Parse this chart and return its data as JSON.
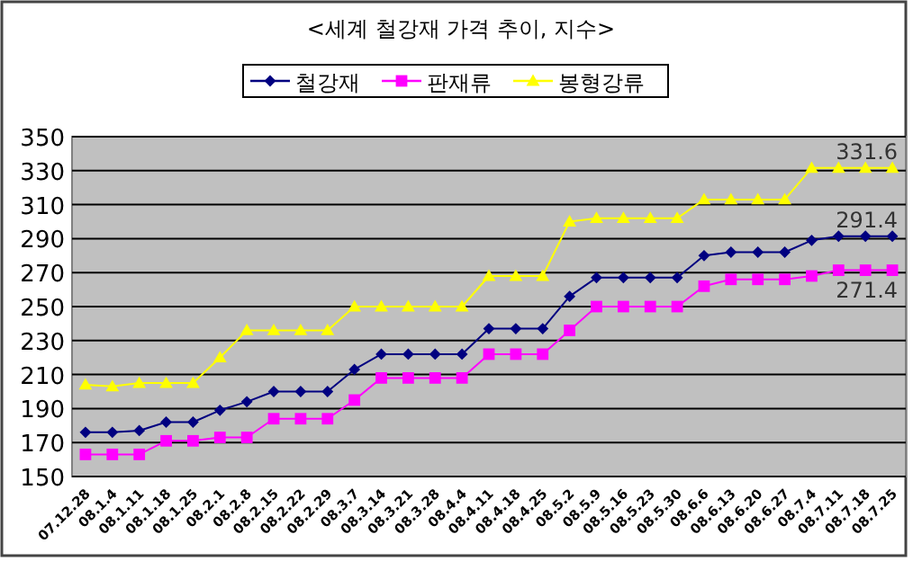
{
  "chart_data": {
    "type": "line",
    "title": "<세계 철강재 가격 추이, 지수>",
    "categories": [
      "07.12.28",
      "08.1.4",
      "08.1.11",
      "08.1.18",
      "08.1.25",
      "08.2.1",
      "08.2.8",
      "08.2.15",
      "08.2.22",
      "08.2.29",
      "08.3.7",
      "08.3.14",
      "08.3.21",
      "08.3.28",
      "08.4.4",
      "08.4.11",
      "08.4.18",
      "08.4.25",
      "08.5.2",
      "08.5.9",
      "08.5.16",
      "08.5.23",
      "08.5.30",
      "08.6.6",
      "08.6.13",
      "08.6.20",
      "08.6.27",
      "08.7.4",
      "08.7.11",
      "08.7.18",
      "08.7.25"
    ],
    "series": [
      {
        "name": "철강재",
        "color": "#000080",
        "marker": "diamond",
        "values": [
          176,
          176,
          177,
          182,
          182,
          189,
          194,
          200,
          200,
          200,
          213,
          222,
          222,
          222,
          222,
          237,
          237,
          237,
          256,
          267,
          267,
          267,
          267,
          280,
          282,
          282,
          282,
          289,
          291.4,
          291.4,
          291.4
        ],
        "value_labels": [
          null,
          null,
          null,
          null,
          null,
          null,
          null,
          null,
          null,
          null,
          null,
          null,
          null,
          null,
          null,
          null,
          null,
          null,
          null,
          null,
          null,
          null,
          null,
          null,
          null,
          null,
          null,
          null,
          null,
          null,
          "291.4"
        ]
      },
      {
        "name": "판재류",
        "color": "#ff00ff",
        "marker": "square",
        "values": [
          163,
          163,
          163,
          171,
          171,
          173,
          173,
          184,
          184,
          184,
          195,
          208,
          208,
          208,
          208,
          222,
          222,
          222,
          236,
          250,
          250,
          250,
          250,
          262,
          266,
          266,
          266,
          268,
          271.4,
          271.4,
          271.4
        ],
        "value_labels": [
          null,
          null,
          null,
          null,
          null,
          null,
          null,
          null,
          null,
          null,
          null,
          null,
          null,
          null,
          null,
          null,
          null,
          null,
          null,
          null,
          null,
          null,
          null,
          null,
          null,
          null,
          null,
          null,
          null,
          null,
          "271.4"
        ]
      },
      {
        "name": "봉형강류",
        "color": "#ffff00",
        "marker": "triangle",
        "values": [
          204,
          203,
          205,
          205,
          205,
          220,
          236,
          236,
          236,
          236,
          250,
          250,
          250,
          250,
          250,
          268,
          268,
          268,
          300,
          302,
          302,
          302,
          302,
          313,
          313,
          313,
          313,
          331.6,
          331.6,
          331.6,
          331.6
        ],
        "value_labels": [
          null,
          null,
          null,
          null,
          null,
          null,
          null,
          null,
          null,
          null,
          null,
          null,
          null,
          null,
          null,
          null,
          null,
          null,
          null,
          null,
          null,
          null,
          null,
          null,
          null,
          null,
          null,
          null,
          null,
          null,
          "331.6"
        ]
      }
    ],
    "ylim": [
      150,
      350
    ],
    "yticks": [
      150,
      170,
      190,
      210,
      230,
      250,
      270,
      290,
      310,
      330,
      350
    ],
    "grid": "y",
    "legend": "top"
  }
}
